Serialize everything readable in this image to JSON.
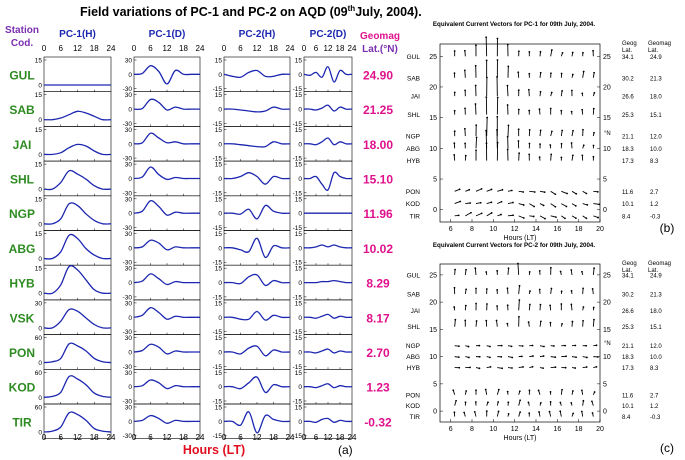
{
  "title_main": "Field variations of PC-1 and PC-2 on AQD (09",
  "title_sup": "th",
  "title_tail": "July, 2004).",
  "station_header": [
    "Station",
    "Cod."
  ],
  "geomag_header": [
    "Geomag",
    "Lat.(°N)"
  ],
  "panel_a_label": "(a)",
  "panel_b_label": "(b)",
  "panel_c_label": "(c)",
  "xlabel_a": "Hours (LT)",
  "column_titles": [
    "PC-1(H)",
    "PC-1(D)",
    "PC-2(H)",
    "PC-2(D)"
  ],
  "top_ticks": [
    "0",
    "6",
    "12",
    "18",
    "24"
  ],
  "bottom_ticks": [
    "0",
    "6",
    "12",
    "18",
    "24"
  ],
  "colors": {
    "station": "#2e8b22",
    "geomag": "#e0118c",
    "curve": "#1c27b0",
    "column_title": "#1c27b0",
    "xlabel": "#e01020"
  },
  "chart_data": [
    {
      "type": "line",
      "title": "Field variations of PC-1 and PC-2 on AQD (09th July, 2004).",
      "xlabel": "Hours (LT)",
      "x_range": [
        0,
        24
      ],
      "columns": [
        "PC-1(H)",
        "PC-1(D)",
        "PC-2(H)",
        "PC-2(D)"
      ],
      "stations": [
        {
          "code": "GUL",
          "geomag_lat": "24.90",
          "ticks": [
            [
              "15",
              "0"
            ],
            [
              "30",
              "0",
              "-30"
            ],
            [
              "15",
              "0",
              "-15"
            ],
            [
              "15",
              "0",
              "-15"
            ]
          ],
          "series": [
            [
              0,
              0,
              0,
              0,
              0,
              0,
              0,
              0,
              0
            ],
            [
              0,
              2,
              18,
              6,
              -20,
              8,
              0,
              0,
              0
            ],
            [
              0,
              -2,
              -3,
              2,
              4,
              -2,
              -2,
              0,
              0
            ],
            [
              0,
              -1,
              2,
              -3,
              8,
              -8,
              4,
              0,
              0
            ]
          ]
        },
        {
          "code": "SAB",
          "geomag_lat": "21.25",
          "ticks": [
            [
              "15",
              "0"
            ],
            [
              "30",
              "0",
              "-30"
            ],
            [
              "15",
              "0",
              "-15"
            ],
            [
              "15",
              "0",
              "-15"
            ]
          ],
          "series": [
            [
              0,
              0,
              1,
              3,
              5,
              4,
              2,
              0,
              0
            ],
            [
              0,
              1,
              20,
              14,
              -2,
              4,
              0,
              0,
              0
            ],
            [
              0,
              0,
              -1,
              -2,
              -3,
              -2,
              2,
              0,
              0
            ],
            [
              0,
              0,
              -1,
              1,
              4,
              -2,
              2,
              0,
              0
            ]
          ]
        },
        {
          "code": "JAI",
          "geomag_lat": "18.00",
          "ticks": [
            [
              "15",
              "0"
            ],
            [
              "30",
              "0",
              "-30"
            ],
            [
              "15",
              "0",
              "-15"
            ],
            [
              "15",
              "0",
              "-15"
            ]
          ],
          "series": [
            [
              0,
              0,
              1,
              4,
              6,
              5,
              2,
              0,
              0
            ],
            [
              0,
              2,
              22,
              12,
              2,
              4,
              0,
              0,
              0
            ],
            [
              0,
              0,
              -1,
              -2,
              -3,
              -3,
              2,
              0,
              0
            ],
            [
              0,
              0,
              -1,
              2,
              6,
              -1,
              2,
              0,
              0
            ]
          ]
        },
        {
          "code": "SHL",
          "geomag_lat": "15.10",
          "ticks": [
            [
              "15",
              "0"
            ],
            [
              "30",
              "0",
              "-30"
            ],
            [
              "15",
              "0",
              "-15"
            ],
            [
              "15",
              "0",
              "-15"
            ]
          ],
          "series": [
            [
              0,
              0,
              4,
              11,
              9,
              6,
              2,
              0,
              0
            ],
            [
              0,
              3,
              24,
              8,
              -2,
              2,
              0,
              0,
              0
            ],
            [
              0,
              0,
              2,
              6,
              2,
              -6,
              2,
              0,
              0
            ],
            [
              0,
              0,
              2,
              -6,
              -12,
              6,
              2,
              0,
              0
            ]
          ]
        },
        {
          "code": "NGP",
          "geomag_lat": "11.96",
          "ticks": [
            [
              "15",
              "0"
            ],
            [
              "30",
              "0",
              "-30"
            ],
            [
              "15",
              "0",
              "-15"
            ],
            [
              "15",
              "0",
              "-15"
            ]
          ],
          "series": [
            [
              0,
              0,
              3,
              12,
              11,
              6,
              2,
              0,
              0
            ],
            [
              0,
              4,
              26,
              14,
              -4,
              2,
              0,
              0,
              0
            ],
            [
              0,
              0,
              -1,
              4,
              -6,
              8,
              2,
              0,
              0
            ],
            [
              0,
              0,
              0,
              0,
              0,
              0,
              0,
              0,
              0
            ]
          ]
        },
        {
          "code": "ABG",
          "geomag_lat": "10.02",
          "ticks": [
            [
              "15",
              "0"
            ],
            [
              "30",
              "0",
              "-30"
            ],
            [
              "15",
              "0",
              "-15"
            ],
            [
              "15",
              "0",
              "-15"
            ]
          ],
          "series": [
            [
              0,
              0,
              4,
              14,
              12,
              6,
              2,
              0,
              0
            ],
            [
              0,
              2,
              16,
              10,
              -4,
              2,
              0,
              0,
              0
            ],
            [
              0,
              0,
              -2,
              -4,
              10,
              -10,
              2,
              0,
              0
            ],
            [
              0,
              0,
              1,
              3,
              1,
              3,
              1,
              0,
              0
            ]
          ]
        },
        {
          "code": "HYB",
          "geomag_lat": "8.29",
          "ticks": [
            [
              "15",
              "0"
            ],
            [
              "30",
              "0",
              "-30"
            ],
            [
              "15",
              "0",
              "-15"
            ],
            [
              "15",
              "0",
              "-15"
            ]
          ],
          "series": [
            [
              0,
              0,
              5,
              16,
              14,
              8,
              2,
              0,
              0
            ],
            [
              0,
              3,
              18,
              8,
              -4,
              2,
              0,
              0,
              0
            ],
            [
              0,
              0,
              -1,
              6,
              8,
              -3,
              2,
              0,
              0
            ],
            [
              0,
              0,
              0,
              1,
              1,
              2,
              1,
              0,
              0
            ]
          ]
        },
        {
          "code": "VSK",
          "geomag_lat": "8.17",
          "ticks": [
            [
              "30",
              "0"
            ],
            [
              "30",
              "0",
              "-30"
            ],
            [
              "15",
              "0",
              "-15"
            ],
            [
              "15",
              "0",
              "-15"
            ]
          ],
          "series": [
            [
              0,
              0,
              8,
              22,
              20,
              12,
              4,
              0,
              0
            ],
            [
              0,
              4,
              20,
              10,
              -4,
              2,
              0,
              0,
              0
            ],
            [
              0,
              0,
              -2,
              -2,
              6,
              -3,
              2,
              0,
              0
            ],
            [
              0,
              0,
              -1,
              1,
              3,
              -1,
              1,
              0,
              0
            ]
          ]
        },
        {
          "code": "PON",
          "geomag_lat": "2.70",
          "ticks": [
            [
              "60",
              "0"
            ],
            [
              "30",
              "0",
              "-30"
            ],
            [
              "15",
              "0",
              "-15"
            ],
            [
              "15",
              "0",
              "-15"
            ]
          ],
          "series": [
            [
              0,
              2,
              10,
              45,
              40,
              28,
              10,
              2,
              0
            ],
            [
              0,
              3,
              16,
              10,
              -4,
              2,
              0,
              0,
              0
            ],
            [
              0,
              0,
              -2,
              4,
              6,
              -4,
              2,
              0,
              0
            ],
            [
              0,
              0,
              -1,
              1,
              3,
              -1,
              1,
              0,
              0
            ]
          ]
        },
        {
          "code": "KOD",
          "geomag_lat": "1.23",
          "ticks": [
            [
              "60",
              "0"
            ],
            [
              "30",
              "0",
              "-30"
            ],
            [
              "15",
              "0",
              "-15"
            ],
            [
              "15",
              "0",
              "-15"
            ]
          ],
          "series": [
            [
              0,
              2,
              12,
              50,
              44,
              30,
              10,
              2,
              0
            ],
            [
              0,
              2,
              14,
              8,
              -4,
              2,
              0,
              0,
              0
            ],
            [
              0,
              0,
              -2,
              4,
              10,
              -6,
              2,
              0,
              0
            ],
            [
              0,
              0,
              -1,
              1,
              3,
              -1,
              1,
              0,
              0
            ]
          ]
        },
        {
          "code": "TIR",
          "geomag_lat": "-0.32",
          "ticks": [
            [
              "60",
              "0"
            ],
            [
              "30",
              "0",
              "-30"
            ],
            [
              "15",
              "0",
              "-15"
            ],
            [
              "15",
              "0",
              "-15"
            ]
          ],
          "series": [
            [
              0,
              2,
              12,
              46,
              42,
              28,
              8,
              2,
              0
            ],
            [
              0,
              2,
              12,
              6,
              -4,
              2,
              0,
              0,
              0
            ],
            [
              0,
              0,
              -4,
              10,
              -12,
              6,
              2,
              0,
              0
            ],
            [
              0,
              0,
              -1,
              2,
              3,
              -1,
              1,
              0,
              0
            ]
          ]
        }
      ]
    },
    {
      "type": "vector",
      "title": "Equivalent Current Vectors for PC-1 for 09th July, 2004.",
      "xlabel": "Hours (LT)",
      "ylabel": "°N",
      "x_ticks": [
        "6",
        "8",
        "10",
        "12",
        "14",
        "16",
        "18",
        "20"
      ],
      "y_ticks": [
        "0",
        "5",
        "10",
        "15",
        "20",
        "25"
      ],
      "right_header": [
        [
          "Geog",
          "Lat."
        ],
        [
          "Geomag",
          "Lat."
        ]
      ],
      "stations": [
        {
          "code": "GUL",
          "lat": "25",
          "geog": "34.1",
          "geomag": "24.9"
        },
        {
          "code": "SAB",
          "lat": "21.5",
          "geog": "30.2",
          "geomag": "21.3"
        },
        {
          "code": "JAI",
          "lat": "18.5",
          "geog": "26.6",
          "geomag": "18.0"
        },
        {
          "code": "SHL",
          "lat": "15.5",
          "geog": "25.3",
          "geomag": "15.1"
        },
        {
          "code": "NGP",
          "lat": "12",
          "geog": "21.1",
          "geomag": "12.0"
        },
        {
          "code": "ABG",
          "lat": "10",
          "geog": "18.3",
          "geomag": "10.0"
        },
        {
          "code": "HYB",
          "lat": "8",
          "geog": "17.3",
          "geomag": "8.3"
        },
        {
          "code": "PON",
          "lat": "3",
          "geog": "11.6",
          "geomag": "2.7"
        },
        {
          "code": "KOD",
          "lat": "1",
          "geog": "10.1",
          "geomag": "1.2"
        },
        {
          "code": "TIR",
          "lat": "-1",
          "geog": "8.4",
          "geomag": "-0.3"
        }
      ]
    },
    {
      "type": "vector",
      "title": "Equivalent Current Vectors for PC-2 for 09th July, 2004.",
      "xlabel": "Hours (LT)",
      "ylabel": "°N",
      "x_ticks": [
        "6",
        "8",
        "10",
        "12",
        "14",
        "16",
        "18",
        "20"
      ],
      "y_ticks": [
        "0",
        "5",
        "10",
        "15",
        "20",
        "25"
      ],
      "right_header": [
        [
          "Geog",
          "Lat."
        ],
        [
          "Geomag",
          "Lat."
        ]
      ],
      "stations": [
        {
          "code": "GUL",
          "lat": "25",
          "geog": "34.1",
          "geomag": "24.9"
        },
        {
          "code": "SAB",
          "lat": "21.5",
          "geog": "30.2",
          "geomag": "21.3"
        },
        {
          "code": "JAI",
          "lat": "18.5",
          "geog": "26.6",
          "geomag": "18.0"
        },
        {
          "code": "SHL",
          "lat": "15.5",
          "geog": "25.3",
          "geomag": "15.1"
        },
        {
          "code": "NGP",
          "lat": "12",
          "geog": "21.1",
          "geomag": "12.0"
        },
        {
          "code": "ABG",
          "lat": "10",
          "geog": "18.3",
          "geomag": "10.0"
        },
        {
          "code": "HYB",
          "lat": "8",
          "geog": "17.3",
          "geomag": "8.3"
        },
        {
          "code": "PON",
          "lat": "3",
          "geog": "11.6",
          "geomag": "2.7"
        },
        {
          "code": "KOD",
          "lat": "1",
          "geog": "10.1",
          "geomag": "1.2"
        },
        {
          "code": "TIR",
          "lat": "-1",
          "geog": "8.4",
          "geomag": "-0.3"
        }
      ]
    }
  ]
}
